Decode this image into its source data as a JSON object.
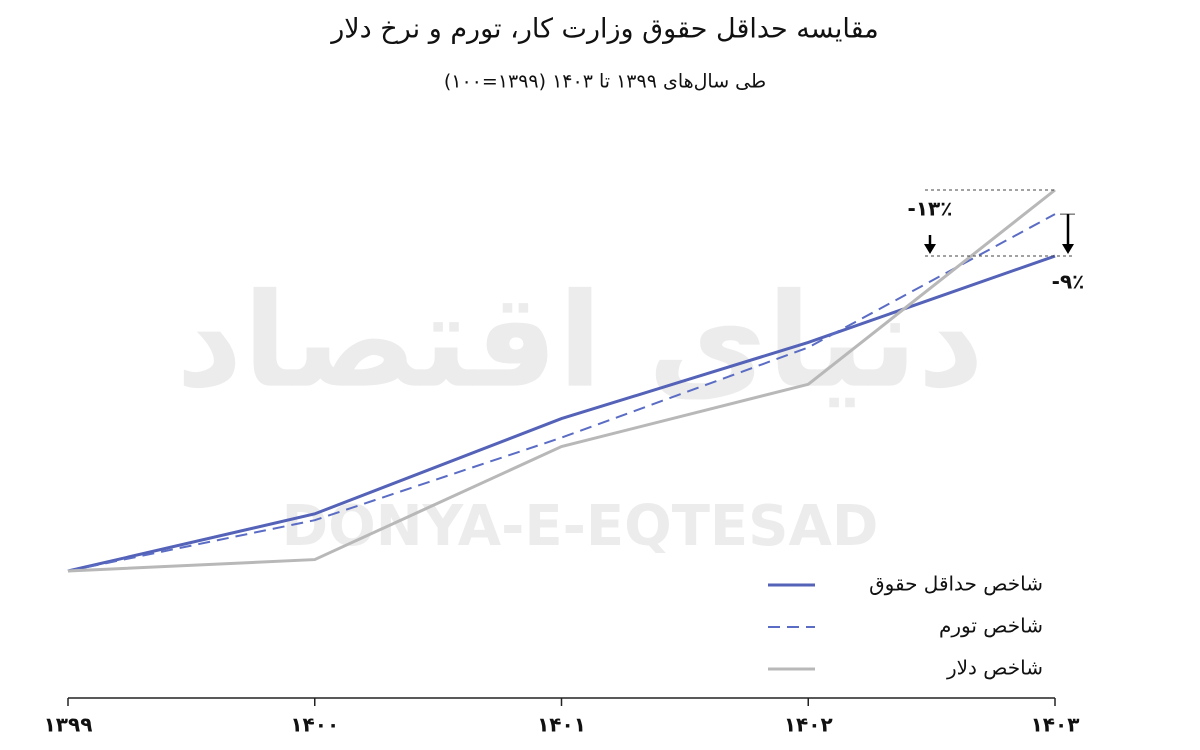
{
  "chart_data": {
    "type": "line",
    "title": "مقایسه حداقل حقوق وزارت کار، تورم و نرخ دلار",
    "subtitle": "طی سال‌های ۱۳۹۹ تا ۱۴۰۳ (۱۳۹۹=۱۰۰)",
    "categories": [
      "۱۳۹۹",
      "۱۴۰۰",
      "۱۴۰۱",
      "۱۴۰۲",
      "۱۴۰۳"
    ],
    "series": [
      {
        "name": "شاخص حداقل حقوق",
        "color": "#5462b8",
        "style": "solid",
        "values": [
          100,
          145,
          220,
          280,
          348
        ]
      },
      {
        "name": "شاخص تورم",
        "color": "#5a6cc4",
        "style": "dashed",
        "values": [
          100,
          140,
          205,
          276,
          381
        ]
      },
      {
        "name": "شاخص دلار",
        "color": "#b8b8b8",
        "style": "solid",
        "values": [
          100,
          109,
          198,
          247,
          400
        ]
      }
    ],
    "annotations": [
      "-۱۳٪",
      "-۹٪"
    ],
    "watermark": [
      "دنیای اقتصاد",
      "DONYA-E-EQTESAD"
    ],
    "ylim": [
      0,
      500
    ],
    "legend": "bottom-right"
  }
}
